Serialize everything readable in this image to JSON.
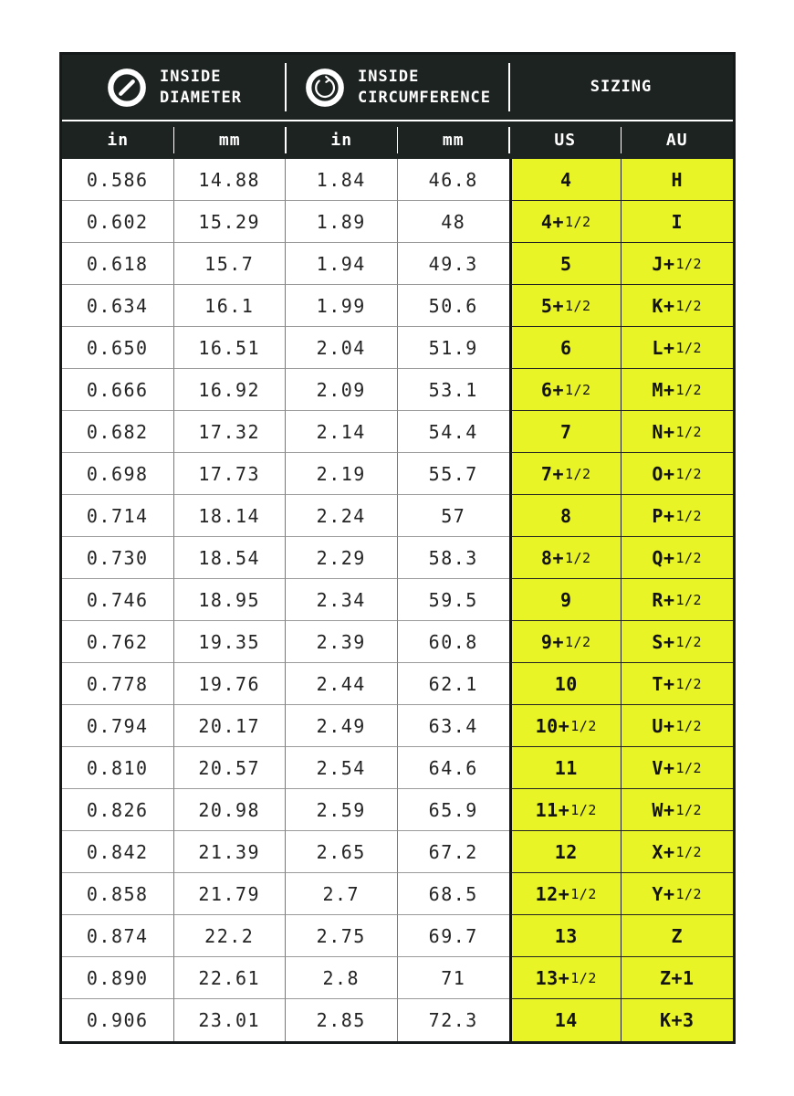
{
  "header": {
    "sections": [
      {
        "title": "INSIDE\nDIAMETER",
        "icon": "diameter-icon"
      },
      {
        "title": "INSIDE\nCIRCUMFERENCE",
        "icon": "circumference-icon"
      },
      {
        "title": "SIZING"
      }
    ],
    "columns": [
      "in",
      "mm",
      "in",
      "mm",
      "US",
      "AU"
    ]
  },
  "colors": {
    "header_bg": "#1d2321",
    "header_text": "#ffffff",
    "highlight_yellow": "#e9f426",
    "body_text": "#242424",
    "outer_border": "#15191a"
  },
  "chart_data": {
    "type": "table",
    "title": "Ring size conversion chart",
    "column_groups": [
      {
        "label": "INSIDE DIAMETER",
        "columns": [
          "in",
          "mm"
        ]
      },
      {
        "label": "INSIDE CIRCUMFERENCE",
        "columns": [
          "in",
          "mm"
        ]
      },
      {
        "label": "SIZING",
        "columns": [
          "US",
          "AU"
        ]
      }
    ],
    "columns": [
      "in",
      "mm",
      "in",
      "mm",
      "US",
      "AU"
    ],
    "rows": [
      [
        "0.586",
        "14.88",
        "1.84",
        "46.8",
        "4",
        "H"
      ],
      [
        "0.602",
        "15.29",
        "1.89",
        "48",
        "4+1/2",
        "I"
      ],
      [
        "0.618",
        "15.7",
        "1.94",
        "49.3",
        "5",
        "J+1/2"
      ],
      [
        "0.634",
        "16.1",
        "1.99",
        "50.6",
        "5+1/2",
        "K+1/2"
      ],
      [
        "0.650",
        "16.51",
        "2.04",
        "51.9",
        "6",
        "L+1/2"
      ],
      [
        "0.666",
        "16.92",
        "2.09",
        "53.1",
        "6+1/2",
        "M+1/2"
      ],
      [
        "0.682",
        "17.32",
        "2.14",
        "54.4",
        "7",
        "N+1/2"
      ],
      [
        "0.698",
        "17.73",
        "2.19",
        "55.7",
        "7+1/2",
        "O+1/2"
      ],
      [
        "0.714",
        "18.14",
        "2.24",
        "57",
        "8",
        "P+1/2"
      ],
      [
        "0.730",
        "18.54",
        "2.29",
        "58.3",
        "8+1/2",
        "Q+1/2"
      ],
      [
        "0.746",
        "18.95",
        "2.34",
        "59.5",
        "9",
        "R+1/2"
      ],
      [
        "0.762",
        "19.35",
        "2.39",
        "60.8",
        "9+1/2",
        "S+1/2"
      ],
      [
        "0.778",
        "19.76",
        "2.44",
        "62.1",
        "10",
        "T+1/2"
      ],
      [
        "0.794",
        "20.17",
        "2.49",
        "63.4",
        "10+1/2",
        "U+1/2"
      ],
      [
        "0.810",
        "20.57",
        "2.54",
        "64.6",
        "11",
        "V+1/2"
      ],
      [
        "0.826",
        "20.98",
        "2.59",
        "65.9",
        "11+1/2",
        "W+1/2"
      ],
      [
        "0.842",
        "21.39",
        "2.65",
        "67.2",
        "12",
        "X+1/2"
      ],
      [
        "0.858",
        "21.79",
        "2.7",
        "68.5",
        "12+1/2",
        "Y+1/2"
      ],
      [
        "0.874",
        "22.2",
        "2.75",
        "69.7",
        "13",
        "Z"
      ],
      [
        "0.890",
        "22.61",
        "2.8",
        "71",
        "13+1/2",
        "Z+1"
      ],
      [
        "0.906",
        "23.01",
        "2.85",
        "72.3",
        "14",
        "K+3"
      ]
    ]
  }
}
